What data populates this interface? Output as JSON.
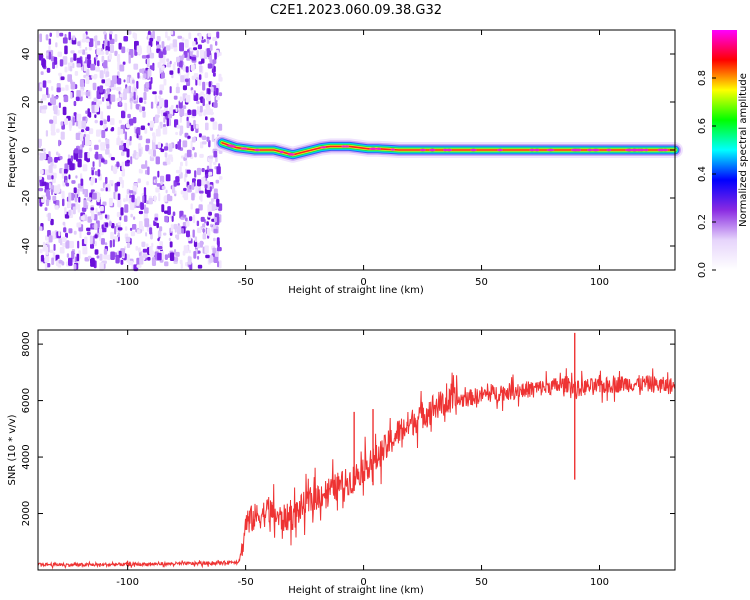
{
  "title": "C2E1.2023.060.09.38.G32",
  "chart_data": [
    {
      "type": "heatmap",
      "xlabel": "Height of straight line (km)",
      "ylabel": "Frequency (Hz)",
      "xlim": [
        -138,
        132
      ],
      "ylim": [
        -50,
        50
      ],
      "xticks": [
        -100,
        -50,
        0,
        50,
        100
      ],
      "yticks": [
        -40,
        -20,
        0,
        20,
        40
      ],
      "noise_region": {
        "x": [
          -138,
          -60
        ],
        "y": [
          -50,
          50
        ]
      },
      "signal_trace": {
        "x": [
          -60,
          -57,
          -54,
          -50,
          -46,
          -42,
          -38,
          -34,
          -30,
          -26,
          -22,
          -18,
          -14,
          -10,
          -6,
          -2,
          2,
          6,
          10,
          15,
          20,
          30,
          40,
          60,
          80,
          100,
          120,
          132
        ],
        "y": [
          3,
          2,
          1,
          0.5,
          0,
          0,
          0,
          -1,
          -2,
          -1,
          0,
          1,
          1.5,
          1.5,
          1.5,
          1,
          0.5,
          0.5,
          0.3,
          0,
          0,
          0,
          0,
          0,
          0,
          0,
          0,
          0
        ]
      },
      "colorbar": {
        "label": "Normalized spectral amplitude",
        "range": [
          0,
          1
        ],
        "ticks": [
          "0.0",
          "0.2",
          "0.4",
          "0.6",
          "0.8"
        ],
        "colors": [
          "#ffffff",
          "#e6d4fb",
          "#8a2be2",
          "#0000ff",
          "#00ffff",
          "#00ff00",
          "#ffff00",
          "#ff0000",
          "#ff00ff"
        ]
      }
    },
    {
      "type": "line",
      "xlabel": "Height of straight line (km)",
      "ylabel": "SNR (10 * v/v)",
      "xlim": [
        -138,
        132
      ],
      "ylim": [
        0,
        8500
      ],
      "xticks": [
        -100,
        -50,
        0,
        50,
        100
      ],
      "yticks": [
        2000,
        4000,
        6000,
        8000
      ],
      "color": "#ee3333",
      "series_envelope": {
        "x": [
          -138,
          -120,
          -100,
          -80,
          -60,
          -53,
          -51,
          -50,
          -45,
          -40,
          -35,
          -30,
          -25,
          -20,
          -15,
          -10,
          -5,
          0,
          5,
          10,
          15,
          20,
          25,
          30,
          40,
          50,
          60,
          70,
          80,
          88,
          90,
          95,
          100,
          110,
          120,
          132
        ],
        "y": [
          200,
          180,
          200,
          220,
          250,
          300,
          900,
          1700,
          1900,
          2100,
          1800,
          1900,
          2300,
          2600,
          2800,
          3000,
          3200,
          3600,
          3900,
          4400,
          4900,
          5200,
          5500,
          5800,
          6000,
          6200,
          6300,
          6400,
          6500,
          6600,
          6400,
          6500,
          6500,
          6600,
          6600,
          6500
        ]
      },
      "noise_amplitude": 300,
      "spikes": [
        {
          "x": 89.5,
          "y_max": 8400,
          "y_min": 3200
        },
        {
          "x": 4,
          "y_max": 5700,
          "y_min": 3000
        },
        {
          "x": -4,
          "y_max": 5600,
          "y_min": 2800
        }
      ]
    }
  ]
}
